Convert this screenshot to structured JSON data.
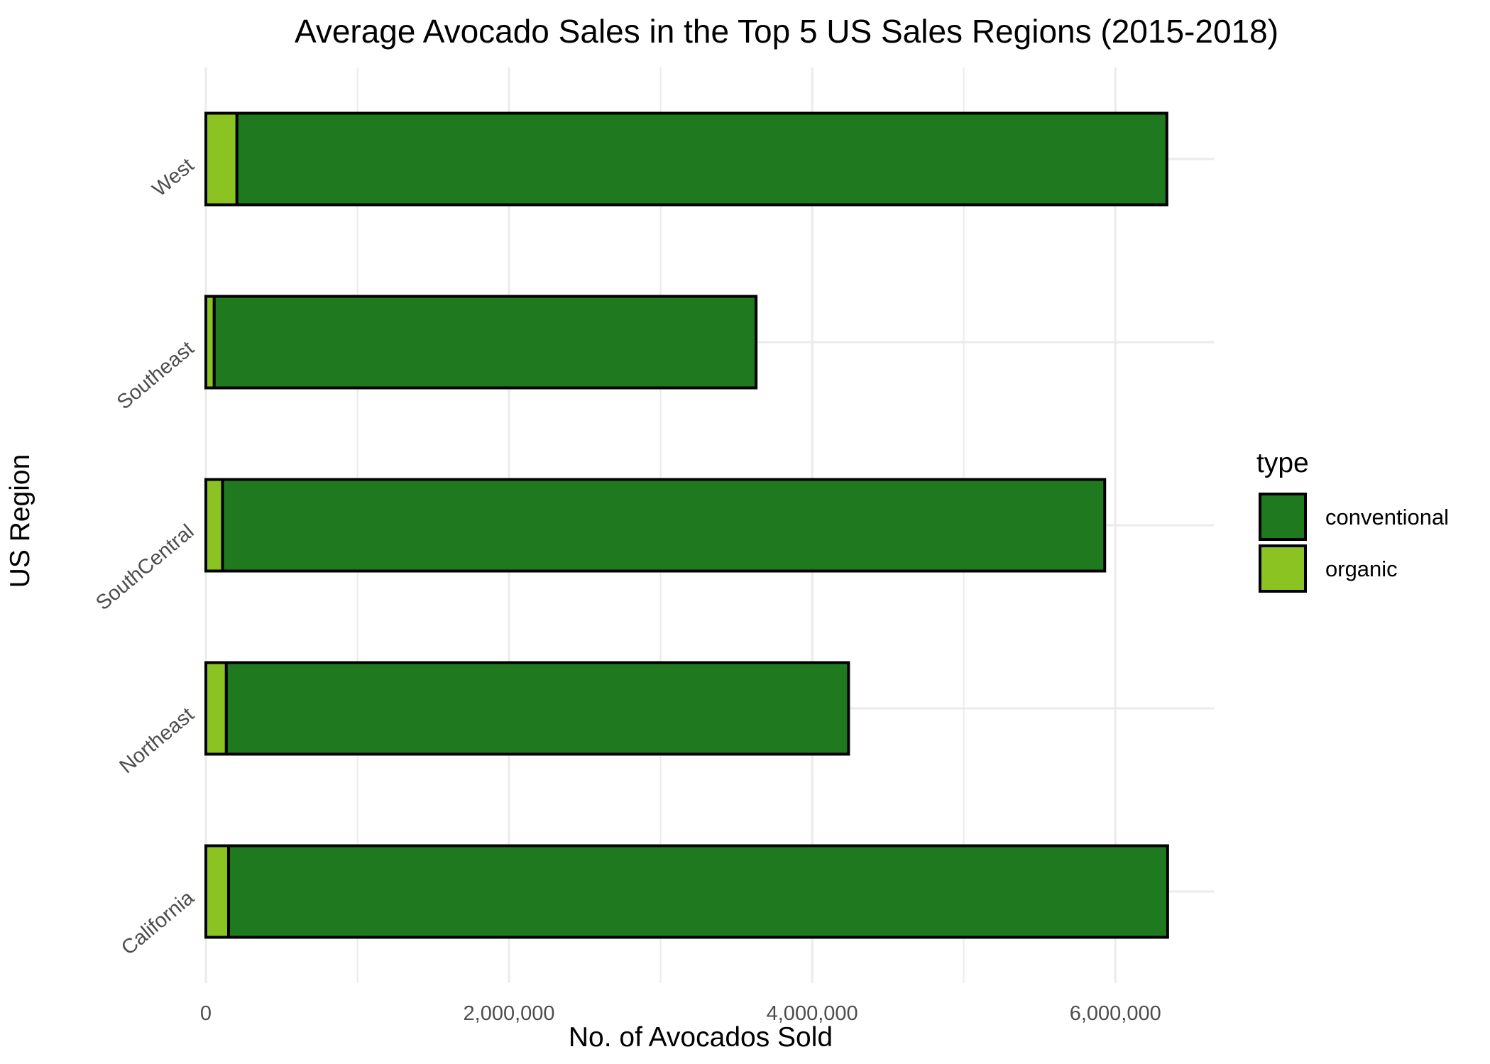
{
  "chart_data": {
    "type": "bar",
    "orientation": "horizontal",
    "stacked": true,
    "title": "Average Avocado Sales in the Top 5 US Sales Regions (2015-2018)",
    "xlabel": "No. of Avocados Sold",
    "ylabel": "US Region",
    "xlim": [
      0,
      6650000
    ],
    "x_ticks": [
      0,
      2000000,
      4000000,
      6000000
    ],
    "x_tick_labels": [
      "0",
      "2,000,000",
      "4,000,000",
      "6,000,000"
    ],
    "categories": [
      "West",
      "Southeast",
      "SouthCentral",
      "Northeast",
      "California"
    ],
    "series": [
      {
        "name": "organic",
        "color": "#8bc322",
        "values": [
          205000,
          55000,
          110000,
          135000,
          150000
        ]
      },
      {
        "name": "conventional",
        "color": "#1f7a1f",
        "values": [
          6135000,
          3575000,
          5820000,
          4105000,
          6195000
        ]
      }
    ],
    "legend": {
      "title": "type",
      "placement": "right",
      "items": [
        {
          "label": "conventional",
          "color": "#1f7a1f"
        },
        {
          "label": "organic",
          "color": "#8bc322"
        }
      ]
    },
    "grid": true
  }
}
